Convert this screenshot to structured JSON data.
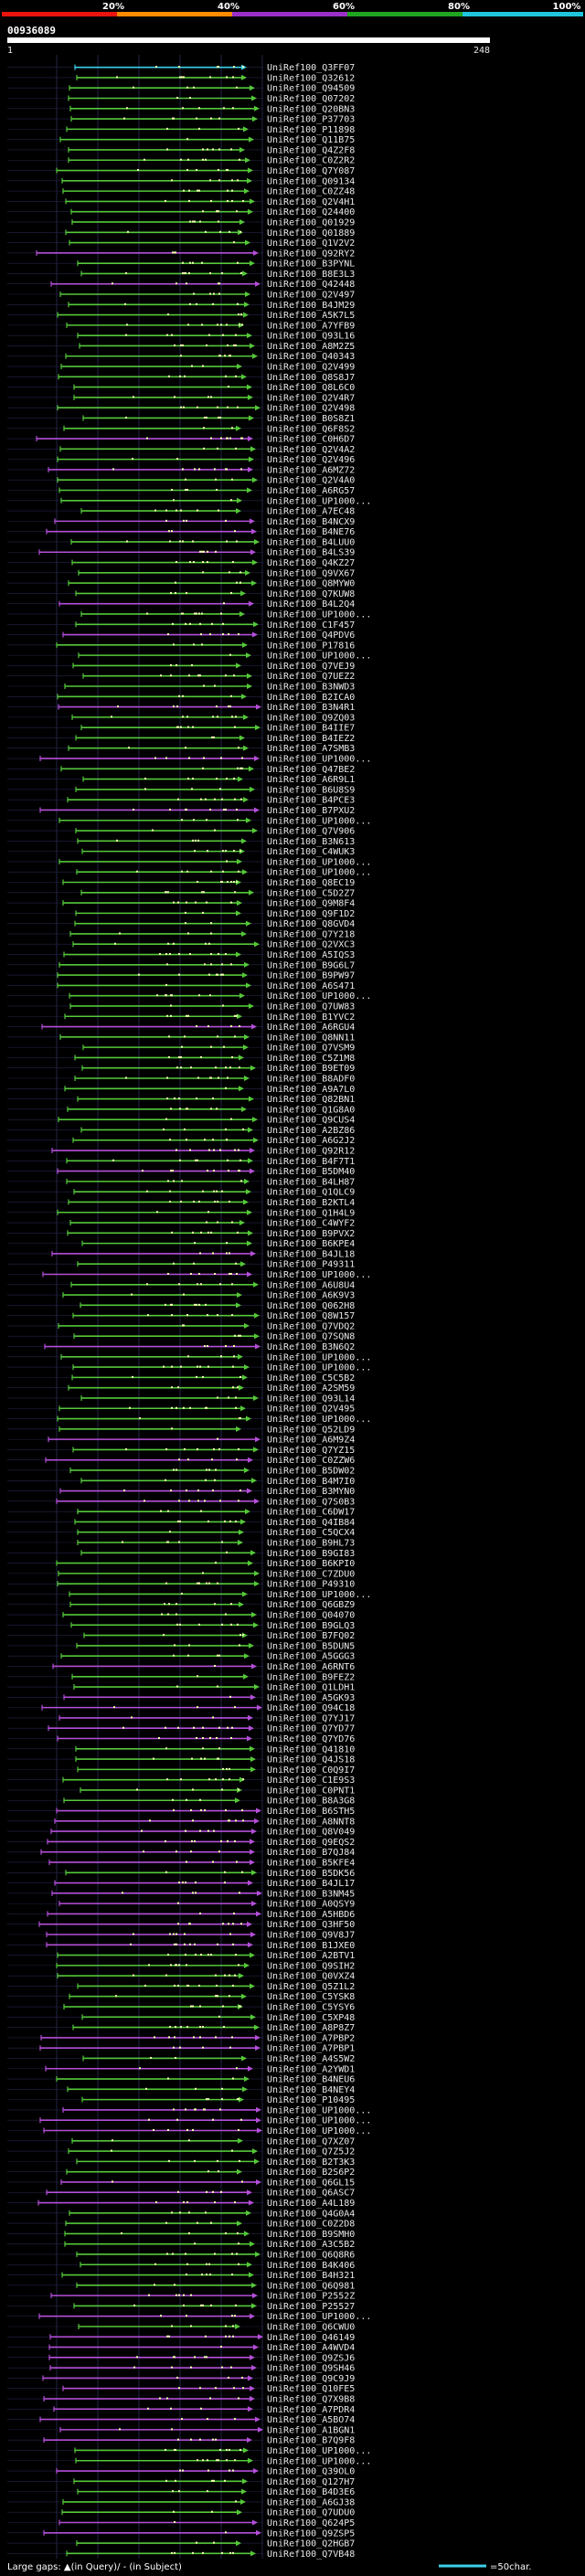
{
  "header": {
    "color_scale_labels": [
      "20%",
      "40%",
      "60%",
      "80%",
      "100%"
    ],
    "color_scale": [
      "#e8140e",
      "#ff8c00",
      "#9b30c8",
      "#1fa51f",
      "#20c4dc"
    ],
    "query_id": "00936089",
    "query_start": "1",
    "query_end": "248"
  },
  "colors": {
    "background": "#000000",
    "grid": "#23234a",
    "cyan": "#3cd0e8",
    "green": "#55c83a",
    "purple": "#b44fd8",
    "dots": "#f2ffb0"
  },
  "hits": [
    {
      "id": "UniRef100_Q3FF07",
      "color": "cyan"
    },
    {
      "id": "UniRef100_Q32612",
      "color": "green"
    },
    {
      "id": "UniRef100_Q94509",
      "color": "green"
    },
    {
      "id": "UniRef100_Q07202",
      "color": "green"
    },
    {
      "id": "UniRef100_Q20BN3",
      "color": "green"
    },
    {
      "id": "UniRef100_P37703",
      "color": "green"
    },
    {
      "id": "UniRef100_P11898",
      "color": "green"
    },
    {
      "id": "UniRef100_Q11B75",
      "color": "green"
    },
    {
      "id": "UniRef100_Q4Z2F8",
      "color": "green"
    },
    {
      "id": "UniRef100_C0Z2R2",
      "color": "green"
    },
    {
      "id": "UniRef100_Q7Y087",
      "color": "green"
    },
    {
      "id": "UniRef100_Q09134",
      "color": "green"
    },
    {
      "id": "UniRef100_C0ZZ48",
      "color": "green"
    },
    {
      "id": "UniRef100_Q2V4H1",
      "color": "green"
    },
    {
      "id": "UniRef100_Q24400",
      "color": "green"
    },
    {
      "id": "UniRef100_Q01929",
      "color": "green"
    },
    {
      "id": "UniRef100_Q01889",
      "color": "green"
    },
    {
      "id": "UniRef100_Q1V2V2",
      "color": "green"
    },
    {
      "id": "UniRef100_Q92RY2",
      "color": "purple"
    },
    {
      "id": "UniRef100_B3PYNL",
      "color": "green"
    },
    {
      "id": "UniRef100_B8E3L3",
      "color": "green"
    },
    {
      "id": "UniRef100_Q42448",
      "color": "purple"
    },
    {
      "id": "UniRef100_Q2V497",
      "color": "green"
    },
    {
      "id": "UniRef100_B4JM29",
      "color": "green"
    },
    {
      "id": "UniRef100_A5K7L5",
      "color": "green"
    },
    {
      "id": "UniRef100_A7YFB9",
      "color": "green"
    },
    {
      "id": "UniRef100_Q93L16",
      "color": "green"
    },
    {
      "id": "UniRef100_A8M2Z5",
      "color": "green"
    },
    {
      "id": "UniRef100_Q40343",
      "color": "green"
    },
    {
      "id": "UniRef100_Q2V499",
      "color": "green"
    },
    {
      "id": "UniRef100_Q8S8J7",
      "color": "green"
    },
    {
      "id": "UniRef100_Q8L6C0",
      "color": "green"
    },
    {
      "id": "UniRef100_Q2V4R7",
      "color": "green"
    },
    {
      "id": "UniRef100_Q2V498",
      "color": "green"
    },
    {
      "id": "UniRef100_B0S8Z1",
      "color": "green"
    },
    {
      "id": "UniRef100_Q6F8S2",
      "color": "green"
    },
    {
      "id": "UniRef100_C0H6D7",
      "color": "purple"
    },
    {
      "id": "UniRef100_Q2V4A2",
      "color": "green"
    },
    {
      "id": "UniRef100_Q2V496",
      "color": "green"
    },
    {
      "id": "UniRef100_A6MZ72",
      "color": "purple"
    },
    {
      "id": "UniRef100_Q2V4A0",
      "color": "green"
    },
    {
      "id": "UniRef100_A6RG57",
      "color": "green"
    },
    {
      "id": "UniRef100_UP1000...",
      "color": "green"
    },
    {
      "id": "UniRef100_A7EC48",
      "color": "green"
    },
    {
      "id": "UniRef100_B4NCX9",
      "color": "purple"
    },
    {
      "id": "UniRef100_B4NE76",
      "color": "purple"
    },
    {
      "id": "UniRef100_B4LUU0",
      "color": "green"
    },
    {
      "id": "UniRef100_B4LS39",
      "color": "purple"
    },
    {
      "id": "UniRef100_Q4KZ27",
      "color": "green"
    },
    {
      "id": "UniRef100_Q9VX67",
      "color": "green"
    },
    {
      "id": "UniRef100_Q8MYW0",
      "color": "green"
    },
    {
      "id": "UniRef100_Q7KUW8",
      "color": "green"
    },
    {
      "id": "UniRef100_B4L2Q4",
      "color": "purple"
    },
    {
      "id": "UniRef100_UP1000...",
      "color": "green"
    },
    {
      "id": "UniRef100_C1F457",
      "color": "green"
    },
    {
      "id": "UniRef100_Q4PDV6",
      "color": "purple"
    },
    {
      "id": "UniRef100_P17816",
      "color": "green"
    },
    {
      "id": "UniRef100_UP1000...",
      "color": "green"
    },
    {
      "id": "UniRef100_Q7VEJ9",
      "color": "green"
    },
    {
      "id": "UniRef100_Q7UEZ2",
      "color": "green"
    },
    {
      "id": "UniRef100_B3NWD3",
      "color": "green"
    },
    {
      "id": "UniRef100_B2ICA0",
      "color": "green"
    },
    {
      "id": "UniRef100_B3N4R1",
      "color": "purple"
    },
    {
      "id": "UniRef100_Q9ZQ03",
      "color": "green"
    },
    {
      "id": "UniRef100_B4IIE7",
      "color": "green"
    },
    {
      "id": "UniRef100_B4IEZ2",
      "color": "green"
    },
    {
      "id": "UniRef100_A7SMB3",
      "color": "green"
    },
    {
      "id": "UniRef100_UP1000...",
      "color": "purple"
    },
    {
      "id": "UniRef100_Q47BE2",
      "color": "green"
    },
    {
      "id": "UniRef100_A6R9L1",
      "color": "green"
    },
    {
      "id": "UniRef100_B6U8S9",
      "color": "green"
    },
    {
      "id": "UniRef100_B4PCE3",
      "color": "green"
    },
    {
      "id": "UniRef100_B7PXU2",
      "color": "purple"
    },
    {
      "id": "UniRef100_UP1000...",
      "color": "green"
    },
    {
      "id": "UniRef100_Q7V906",
      "color": "green"
    },
    {
      "id": "UniRef100_B3N613",
      "color": "green"
    },
    {
      "id": "UniRef100_C4WUK3",
      "color": "green"
    },
    {
      "id": "UniRef100_UP1000...",
      "color": "green"
    },
    {
      "id": "UniRef100_UP1000...",
      "color": "green"
    },
    {
      "id": "UniRef100_Q8EC19",
      "color": "green"
    },
    {
      "id": "UniRef100_C5D2Z7",
      "color": "green"
    },
    {
      "id": "UniRef100_Q9M8F4",
      "color": "green"
    },
    {
      "id": "UniRef100_Q9F1D2",
      "color": "green"
    },
    {
      "id": "UniRef100_Q8GVD4",
      "color": "green"
    },
    {
      "id": "UniRef100_Q7Y218",
      "color": "green"
    },
    {
      "id": "UniRef100_Q2VXC3",
      "color": "green"
    },
    {
      "id": "UniRef100_A5IQS3",
      "color": "green"
    },
    {
      "id": "UniRef100_B9G6L7",
      "color": "green"
    },
    {
      "id": "UniRef100_B9PW97",
      "color": "green"
    },
    {
      "id": "UniRef100_A6S471",
      "color": "green"
    },
    {
      "id": "UniRef100_UP1000...",
      "color": "green"
    },
    {
      "id": "UniRef100_Q7UW83",
      "color": "green"
    },
    {
      "id": "UniRef100_B1YVC2",
      "color": "green"
    },
    {
      "id": "UniRef100_A6RGU4",
      "color": "purple"
    },
    {
      "id": "UniRef100_Q8NN11",
      "color": "green"
    },
    {
      "id": "UniRef100_Q7VSM9",
      "color": "green"
    },
    {
      "id": "UniRef100_C5Z1M8",
      "color": "green"
    },
    {
      "id": "UniRef100_B9ET09",
      "color": "green"
    },
    {
      "id": "UniRef100_B8ADF0",
      "color": "green"
    },
    {
      "id": "UniRef100_A9A7L0",
      "color": "green"
    },
    {
      "id": "UniRef100_Q82BN1",
      "color": "green"
    },
    {
      "id": "UniRef100_Q1G8A0",
      "color": "green"
    },
    {
      "id": "UniRef100_Q9CUS4",
      "color": "green"
    },
    {
      "id": "UniRef100_A2BZ86",
      "color": "green"
    },
    {
      "id": "UniRef100_A6G2J2",
      "color": "green"
    },
    {
      "id": "UniRef100_Q92R12",
      "color": "purple"
    },
    {
      "id": "UniRef100_B4F7T1",
      "color": "green"
    },
    {
      "id": "UniRef100_B5DM40",
      "color": "purple"
    },
    {
      "id": "UniRef100_B4LH87",
      "color": "green"
    },
    {
      "id": "UniRef100_Q1QLC9",
      "color": "green"
    },
    {
      "id": "UniRef100_B2KTL4",
      "color": "green"
    },
    {
      "id": "UniRef100_Q1H4L9",
      "color": "green"
    },
    {
      "id": "UniRef100_C4WYF2",
      "color": "green"
    },
    {
      "id": "UniRef100_B9PVX2",
      "color": "green"
    },
    {
      "id": "UniRef100_B6KPE4",
      "color": "green"
    },
    {
      "id": "UniRef100_B4JL18",
      "color": "purple"
    },
    {
      "id": "UniRef100_P49311",
      "color": "green"
    },
    {
      "id": "UniRef100_UP1000...",
      "color": "purple"
    },
    {
      "id": "UniRef100_A6U8U4",
      "color": "green"
    },
    {
      "id": "UniRef100_A6K9V3",
      "color": "green"
    },
    {
      "id": "UniRef100_Q062H8",
      "color": "green"
    },
    {
      "id": "UniRef100_Q8W157",
      "color": "green"
    },
    {
      "id": "UniRef100_Q7VDQ2",
      "color": "green"
    },
    {
      "id": "UniRef100_Q7SQN8",
      "color": "green"
    },
    {
      "id": "UniRef100_B3N6Q2",
      "color": "purple"
    },
    {
      "id": "UniRef100_UP1000...",
      "color": "green"
    },
    {
      "id": "UniRef100_UP1000...",
      "color": "green"
    },
    {
      "id": "UniRef100_C5C5B2",
      "color": "green"
    },
    {
      "id": "UniRef100_A2SM59",
      "color": "green"
    },
    {
      "id": "UniRef100_Q93L14",
      "color": "green"
    },
    {
      "id": "UniRef100_Q2V495",
      "color": "green"
    },
    {
      "id": "UniRef100_UP1000...",
      "color": "green"
    },
    {
      "id": "UniRef100_Q52LD9",
      "color": "green"
    },
    {
      "id": "UniRef100_A6M9Z4",
      "color": "purple"
    },
    {
      "id": "UniRef100_Q7YZ15",
      "color": "green"
    },
    {
      "id": "UniRef100_C0ZZW6",
      "color": "purple"
    },
    {
      "id": "UniRef100_B5DW02",
      "color": "green"
    },
    {
      "id": "UniRef100_B4M7I0",
      "color": "green"
    },
    {
      "id": "UniRef100_B3MYN0",
      "color": "purple"
    },
    {
      "id": "UniRef100_Q7S0B3",
      "color": "purple"
    },
    {
      "id": "UniRef100_C6DW17",
      "color": "green"
    },
    {
      "id": "UniRef100_Q4IB84",
      "color": "green"
    },
    {
      "id": "UniRef100_C5QCX4",
      "color": "green"
    },
    {
      "id": "UniRef100_B9HL73",
      "color": "green"
    },
    {
      "id": "UniRef100_B9GI83",
      "color": "green"
    },
    {
      "id": "UniRef100_B6KPI0",
      "color": "green"
    },
    {
      "id": "UniRef100_C7ZDU0",
      "color": "green"
    },
    {
      "id": "UniRef100_P49310",
      "color": "green"
    },
    {
      "id": "UniRef100_UP1000...",
      "color": "green"
    },
    {
      "id": "UniRef100_Q6GBZ9",
      "color": "green"
    },
    {
      "id": "UniRef100_Q04070",
      "color": "green"
    },
    {
      "id": "UniRef100_B9GLQ3",
      "color": "green"
    },
    {
      "id": "UniRef100_B7FQ02",
      "color": "green"
    },
    {
      "id": "UniRef100_B5DUN5",
      "color": "green"
    },
    {
      "id": "UniRef100_A5GGG3",
      "color": "green"
    },
    {
      "id": "UniRef100_A6RNT6",
      "color": "purple"
    },
    {
      "id": "UniRef100_B9FEZ2",
      "color": "green"
    },
    {
      "id": "UniRef100_Q1LDH1",
      "color": "green"
    },
    {
      "id": "UniRef100_A5GK93",
      "color": "purple"
    },
    {
      "id": "UniRef100_Q94C18",
      "color": "purple"
    },
    {
      "id": "UniRef100_Q7YJ17",
      "color": "purple"
    },
    {
      "id": "UniRef100_Q7YD77",
      "color": "purple"
    },
    {
      "id": "UniRef100_Q7YD76",
      "color": "purple"
    },
    {
      "id": "UniRef100_Q41810",
      "color": "green"
    },
    {
      "id": "UniRef100_Q4JS18",
      "color": "green"
    },
    {
      "id": "UniRef100_C0Q9I7",
      "color": "green"
    },
    {
      "id": "UniRef100_C1E9S3",
      "color": "green"
    },
    {
      "id": "UniRef100_C0PNT1",
      "color": "green"
    },
    {
      "id": "UniRef100_B8A3G8",
      "color": "green"
    },
    {
      "id": "UniRef100_B6STH5",
      "color": "purple"
    },
    {
      "id": "UniRef100_A8NNT8",
      "color": "purple"
    },
    {
      "id": "UniRef100_Q8V049",
      "color": "purple"
    },
    {
      "id": "UniRef100_Q9EQS2",
      "color": "purple"
    },
    {
      "id": "UniRef100_B7QJ84",
      "color": "purple"
    },
    {
      "id": "UniRef100_B5KFE4",
      "color": "purple"
    },
    {
      "id": "UniRef100_B5DK56",
      "color": "green"
    },
    {
      "id": "UniRef100_B4JL17",
      "color": "purple"
    },
    {
      "id": "UniRef100_B3NM45",
      "color": "purple"
    },
    {
      "id": "UniRef100_A0QSY9",
      "color": "purple"
    },
    {
      "id": "UniRef100_A5HBD6",
      "color": "purple"
    },
    {
      "id": "UniRef100_Q3HF50",
      "color": "purple"
    },
    {
      "id": "UniRef100_Q9V8J7",
      "color": "purple"
    },
    {
      "id": "UniRef100_B1JXE0",
      "color": "purple"
    },
    {
      "id": "UniRef100_A2BTV1",
      "color": "green"
    },
    {
      "id": "UniRef100_Q9SIH2",
      "color": "green"
    },
    {
      "id": "UniRef100_Q0VXZ4",
      "color": "green"
    },
    {
      "id": "UniRef100_Q5Z1L2",
      "color": "green"
    },
    {
      "id": "UniRef100_C5YSK8",
      "color": "green"
    },
    {
      "id": "UniRef100_C5YSY6",
      "color": "green"
    },
    {
      "id": "UniRef100_C5XP48",
      "color": "green"
    },
    {
      "id": "UniRef100_A8P8Z7",
      "color": "green"
    },
    {
      "id": "UniRef100_A7PBP2",
      "color": "purple"
    },
    {
      "id": "UniRef100_A7PBP1",
      "color": "purple"
    },
    {
      "id": "UniRef100_A4S5W2",
      "color": "green"
    },
    {
      "id": "UniRef100_A2YWD1",
      "color": "purple"
    },
    {
      "id": "UniRef100_B4NEU6",
      "color": "green"
    },
    {
      "id": "UniRef100_B4NEY4",
      "color": "green"
    },
    {
      "id": "UniRef100_P10495",
      "color": "green"
    },
    {
      "id": "UniRef100_UP1000...",
      "color": "purple"
    },
    {
      "id": "UniRef100_UP1000...",
      "color": "purple"
    },
    {
      "id": "UniRef100_UP1000...",
      "color": "purple"
    },
    {
      "id": "UniRef100_Q7XZ07",
      "color": "green"
    },
    {
      "id": "UniRef100_Q7Z5J2",
      "color": "green"
    },
    {
      "id": "UniRef100_B2T3K3",
      "color": "green"
    },
    {
      "id": "UniRef100_B2S6P2",
      "color": "green"
    },
    {
      "id": "UniRef100_Q6GL15",
      "color": "purple"
    },
    {
      "id": "UniRef100_Q6ASC7",
      "color": "purple"
    },
    {
      "id": "UniRef100_A4L189",
      "color": "purple"
    },
    {
      "id": "UniRef100_Q4G0A4",
      "color": "green"
    },
    {
      "id": "UniRef100_C0Z2D8",
      "color": "green"
    },
    {
      "id": "UniRef100_B9SMH0",
      "color": "green"
    },
    {
      "id": "UniRef100_A3C5B2",
      "color": "green"
    },
    {
      "id": "UniRef100_Q6Q8R6",
      "color": "green"
    },
    {
      "id": "UniRef100_B4K406",
      "color": "green"
    },
    {
      "id": "UniRef100_B4H321",
      "color": "green"
    },
    {
      "id": "UniRef100_Q6Q981",
      "color": "green"
    },
    {
      "id": "UniRef100_P2552Z",
      "color": "purple"
    },
    {
      "id": "UniRef100_P25527",
      "color": "green"
    },
    {
      "id": "UniRef100_UP1000...",
      "color": "purple"
    },
    {
      "id": "UniRef100_Q6CWU0",
      "color": "green"
    },
    {
      "id": "UniRef100_Q46149",
      "color": "purple"
    },
    {
      "id": "UniRef100_A4WVD4",
      "color": "purple"
    },
    {
      "id": "UniRef100_Q9ZSJ6",
      "color": "purple"
    },
    {
      "id": "UniRef100_Q9SH46",
      "color": "purple"
    },
    {
      "id": "UniRef100_Q9C9J9",
      "color": "purple"
    },
    {
      "id": "UniRef100_Q10FE5",
      "color": "purple"
    },
    {
      "id": "UniRef100_Q7X9B8",
      "color": "purple"
    },
    {
      "id": "UniRef100_A7PDR4",
      "color": "purple"
    },
    {
      "id": "UniRef100_A5BO74",
      "color": "purple"
    },
    {
      "id": "UniRef100_A1BGN1",
      "color": "purple"
    },
    {
      "id": "UniRef100_B7Q9F8",
      "color": "purple"
    },
    {
      "id": "UniRef100_UP1000...",
      "color": "green"
    },
    {
      "id": "UniRef100_UP1000...",
      "color": "green"
    },
    {
      "id": "UniRef100_Q39OL0",
      "color": "purple"
    },
    {
      "id": "UniRef100_Q127H7",
      "color": "green"
    },
    {
      "id": "UniRef100_B4D3E6",
      "color": "green"
    },
    {
      "id": "UniRef100_A6GJ38",
      "color": "green"
    },
    {
      "id": "UniRef100_Q7UDU0",
      "color": "green"
    },
    {
      "id": "UniRef100_Q624P5",
      "color": "purple"
    },
    {
      "id": "UniRef100_Q9ZSP5",
      "color": "purple"
    },
    {
      "id": "UniRef100_Q2HGB7",
      "color": "green"
    },
    {
      "id": "UniRef100_Q7VB48",
      "color": "green"
    }
  ],
  "footer": {
    "gap_legend": "Large gaps: ▲(in Query)/ - (in Subject)",
    "scale_legend": "=50char."
  }
}
